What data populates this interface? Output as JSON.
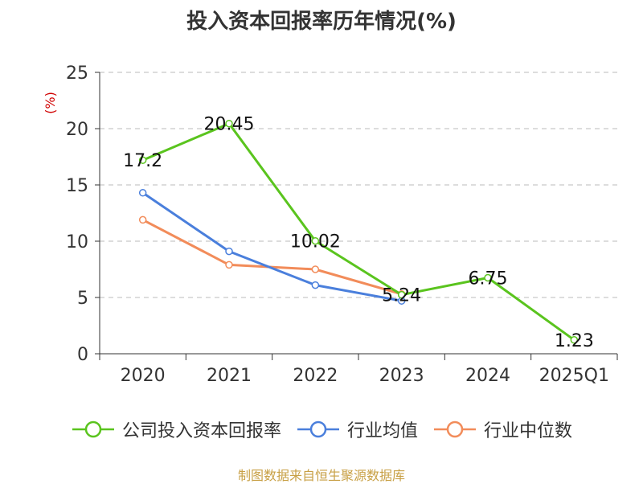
{
  "chart_data": {
    "type": "line",
    "title": "投入资本回报率历年情况(%)",
    "ylabel": "(%)",
    "xlabel": "",
    "categories": [
      "2020",
      "2021",
      "2022",
      "2023",
      "2024",
      "2025Q1"
    ],
    "ylim": [
      0,
      25
    ],
    "yticks": [
      "0",
      "5",
      "10",
      "15",
      "20",
      "25"
    ],
    "grid": true,
    "legend_position": "bottom",
    "series": [
      {
        "name": "公司投入资本回报率",
        "color": "#5ac41e",
        "values": [
          17.2,
          20.45,
          10.02,
          5.24,
          6.75,
          1.23
        ],
        "labels": [
          "17.2",
          "20.45",
          "10.02",
          "5.24",
          "6.75",
          "1.23"
        ]
      },
      {
        "name": "行业均值",
        "color": "#4a7fdc",
        "values": [
          14.3,
          9.1,
          6.1,
          4.7,
          null,
          null
        ]
      },
      {
        "name": "行业中位数",
        "color": "#f28c5a",
        "values": [
          11.9,
          7.9,
          7.5,
          5.3,
          null,
          null
        ]
      }
    ]
  },
  "source": "制图数据来自恒生聚源数据库"
}
